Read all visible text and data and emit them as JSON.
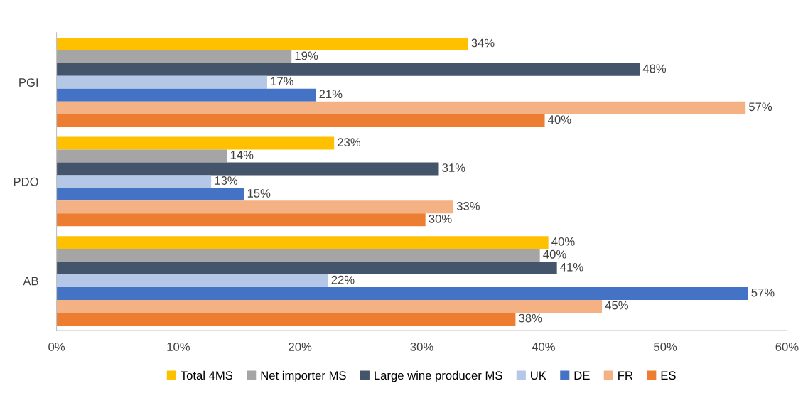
{
  "chart_data": {
    "type": "bar",
    "orientation": "horizontal",
    "categories": [
      "PGI",
      "PDO",
      "AB"
    ],
    "series": [
      {
        "name": "Total 4MS",
        "color": "#ffc000",
        "values": [
          33.8,
          22.8,
          40.4
        ],
        "value_labels": [
          "34%",
          "23%",
          "40%"
        ]
      },
      {
        "name": "Net importer MS",
        "color": "#a5a5a5",
        "values": [
          19.3,
          14.0,
          39.7
        ],
        "value_labels": [
          "19%",
          "14%",
          "40%"
        ]
      },
      {
        "name": "Large wine producer MS",
        "color": "#44546a",
        "values": [
          47.9,
          31.4,
          41.1
        ],
        "value_labels": [
          "48%",
          "31%",
          "41%"
        ]
      },
      {
        "name": "UK",
        "color": "#b4c7e7",
        "values": [
          17.3,
          12.7,
          22.3
        ],
        "value_labels": [
          "17%",
          "13%",
          "22%"
        ]
      },
      {
        "name": "DE",
        "color": "#4472c4",
        "values": [
          21.3,
          15.4,
          56.8
        ],
        "value_labels": [
          "21%",
          "15%",
          "57%"
        ]
      },
      {
        "name": "FR",
        "color": "#f4b183",
        "values": [
          56.6,
          32.6,
          44.8
        ],
        "value_labels": [
          "57%",
          "33%",
          "45%"
        ]
      },
      {
        "name": "ES",
        "color": "#ed7d31",
        "values": [
          40.1,
          30.3,
          37.7
        ],
        "value_labels": [
          "40%",
          "30%",
          "38%"
        ]
      }
    ],
    "xlim": [
      0,
      60
    ],
    "xticks": [
      {
        "value": 0,
        "label": "0%"
      },
      {
        "value": 10,
        "label": "10%"
      },
      {
        "value": 20,
        "label": "20%"
      },
      {
        "value": 30,
        "label": "30%"
      },
      {
        "value": 40,
        "label": "40%"
      },
      {
        "value": 50,
        "label": "50%"
      },
      {
        "value": 60,
        "label": "60%"
      }
    ],
    "grid": false,
    "legend": "bottom"
  }
}
